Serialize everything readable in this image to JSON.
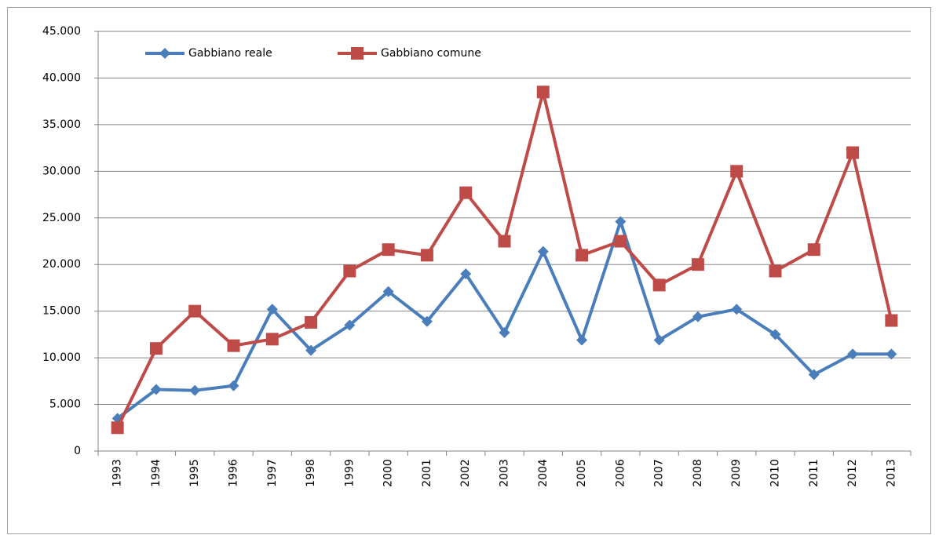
{
  "chart_data": {
    "type": "line",
    "categories": [
      "1993",
      "1994",
      "1995",
      "1996",
      "1997",
      "1998",
      "1999",
      "2000",
      "2001",
      "2002",
      "2003",
      "2004",
      "2005",
      "2006",
      "2007",
      "2008",
      "2009",
      "2010",
      "2011",
      "2012",
      "2013"
    ],
    "series": [
      {
        "name": "Gabbiano reale",
        "color": "#4a7ebb",
        "marker": "diamond",
        "values": [
          3500,
          6600,
          6500,
          7000,
          15200,
          10800,
          13500,
          17100,
          13900,
          19000,
          12700,
          21400,
          11900,
          24600,
          11900,
          14400,
          15200,
          12500,
          8200,
          10400,
          10400
        ]
      },
      {
        "name": "Gabbiano comune",
        "color": "#be4b48",
        "marker": "square",
        "values": [
          2500,
          11000,
          15000,
          11300,
          12000,
          13800,
          19300,
          21600,
          21000,
          27700,
          22500,
          38500,
          21000,
          22500,
          17800,
          20000,
          30000,
          19300,
          21600,
          32000,
          14000
        ]
      }
    ],
    "ylim": [
      0,
      45000
    ],
    "yticks": [
      0,
      {
        "value": 5000,
        "label": "5.000"
      },
      {
        "value": 10000,
        "label": "10.000"
      },
      {
        "value": 15000,
        "label": "15.000"
      },
      {
        "value": 20000,
        "label": "20.000"
      },
      {
        "value": 25000,
        "label": "25.000"
      },
      {
        "value": 30000,
        "label": "30.000"
      },
      {
        "value": 35000,
        "label": "35.000"
      },
      {
        "value": 40000,
        "label": "40.000"
      },
      {
        "value": 45000,
        "label": "45.000"
      }
    ],
    "grid": true,
    "legend": "top-left"
  }
}
